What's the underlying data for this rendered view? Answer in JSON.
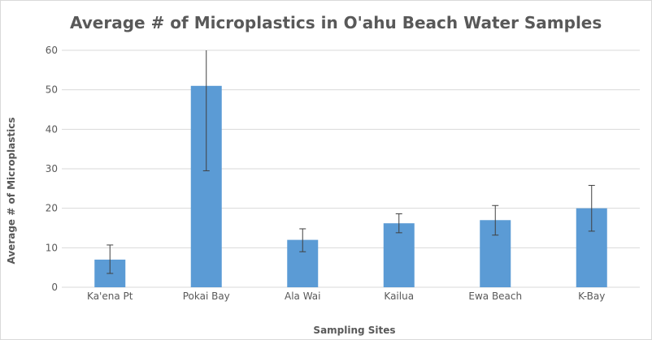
{
  "chart_data": {
    "type": "bar",
    "title": "Average # of Microplastics in O'ahu Beach Water Samples",
    "xlabel": "Sampling Sites",
    "ylabel": "Average # of Microplastics",
    "categories": [
      "Ka'ena Pt",
      "Pokai Bay",
      "Ala Wai",
      "Kailua",
      "Ewa Beach",
      "K-Bay"
    ],
    "values": [
      7,
      51,
      12,
      16.2,
      17,
      20
    ],
    "error_low": [
      3.5,
      29.5,
      9,
      13.8,
      13.2,
      14.2
    ],
    "error_high": [
      10.7,
      60,
      14.8,
      18.6,
      20.7,
      25.8
    ],
    "ylim": [
      0,
      60
    ],
    "yticks": [
      0,
      10,
      20,
      30,
      40,
      50,
      60
    ],
    "grid": true,
    "legend": "none",
    "bar_color": "#5b9bd5",
    "grid_color": "#d9d9d9",
    "error_bar_color": "#404040",
    "text_color": "#595959"
  }
}
